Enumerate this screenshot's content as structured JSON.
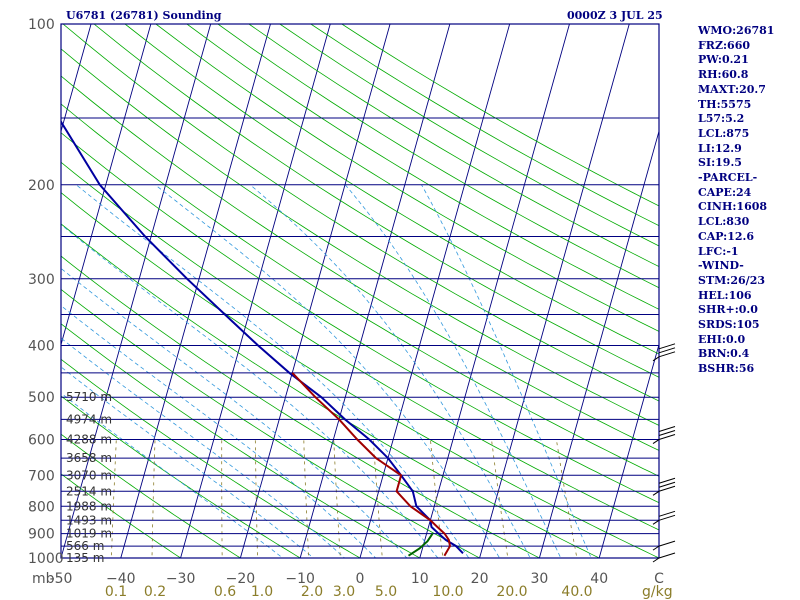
{
  "header": {
    "station": "U6781 (26781) Sounding",
    "time": "0000Z  3 JUL 25"
  },
  "indices": [
    "WMO:26781",
    "FRZ:660",
    "PW:0.21",
    "RH:60.8",
    "MAXT:20.7",
    "TH:5575",
    "L57:5.2",
    "LCL:875",
    "LI:12.9",
    "SI:19.5",
    "-PARCEL-",
    "CAPE:24",
    "CINH:1608",
    "LCL:830",
    "CAP:12.6",
    "LFC:-1",
    "-WIND-",
    "STM:26/23",
    "HEL:106",
    "SHR+:0.0",
    "SRDS:105",
    "EHI:0.0",
    "BRN:0.4",
    "BSHR:56"
  ],
  "colors": {
    "frame": "#000080",
    "isobar": "#000080",
    "isotherm": "#000080",
    "dry_adiabat": "#00aa00",
    "moist_adiabat": "#3399dd",
    "mixing_ratio": "#8b7d2a",
    "temperature": "#0000a0",
    "dewpoint": "#a00000",
    "parcel": "#006600"
  },
  "chart_data": {
    "type": "line",
    "title": "U6781 (26781) Sounding",
    "skew_t": true,
    "p_range": [
      1000,
      100
    ],
    "t_range_at_bottom": [
      -50,
      50
    ],
    "pressure_ticks": [
      100,
      200,
      300,
      400,
      500,
      600,
      700,
      800,
      900,
      1000
    ],
    "temperature_ticks": [
      "-50",
      "−40",
      "−30",
      "−20",
      "−10",
      "0",
      "10",
      "20",
      "30",
      "40",
      "C"
    ],
    "p_unit": "mb",
    "mixing_ratio_ticks": [
      "0.1",
      "0.2",
      "0.6",
      "1.0",
      "2.0",
      "3.0",
      "5.0",
      "10.0",
      "20.0",
      "40.0"
    ],
    "mixing_ratio_unit": "g/kg",
    "height_labels": [
      {
        "p": 500,
        "label": "5710 m"
      },
      {
        "p": 550,
        "label": "4974 m"
      },
      {
        "p": 600,
        "label": "4288 m"
      },
      {
        "p": 650,
        "label": "3658 m"
      },
      {
        "p": 700,
        "label": "3070 m"
      },
      {
        "p": 750,
        "label": "2514 m"
      },
      {
        "p": 800,
        "label": "1988 m"
      },
      {
        "p": 850,
        "label": "1493 m"
      },
      {
        "p": 900,
        "label": "1019 m"
      },
      {
        "p": 950,
        "label": "566 m"
      },
      {
        "p": 1000,
        "label": "135 m"
      }
    ],
    "series": [
      {
        "key": "temperature",
        "p": [
          980,
          950,
          925,
          900,
          875,
          850,
          800,
          750,
          700,
          650,
          600,
          550,
          500,
          450,
          400,
          350,
          300,
          250,
          200,
          150,
          115
        ],
        "t": [
          17,
          15.5,
          13.5,
          12,
          10.5,
          10,
          7,
          5.7,
          3,
          0,
          -4,
          -9,
          -14,
          -20.5,
          -27,
          -34,
          -42,
          -51,
          -61,
          -71,
          -78
        ]
      },
      {
        "key": "dewpoint",
        "p": [
          990,
          950,
          925,
          900,
          875,
          850,
          800,
          750,
          700,
          650,
          600,
          550,
          500,
          450
        ],
        "t": [
          14,
          14.5,
          14,
          13,
          11.5,
          10,
          6,
          3,
          3,
          -2,
          -6,
          -10,
          -15,
          -20
        ]
      },
      {
        "key": "parcel",
        "p": [
          990,
          960,
          930,
          900
        ],
        "t": [
          8,
          9.5,
          10.5,
          11
        ]
      }
    ],
    "winds": [
      {
        "p": 1000,
        "barbs": 1
      },
      {
        "p": 950,
        "barbs": 1
      },
      {
        "p": 850,
        "barbs": 2
      },
      {
        "p": 750,
        "barbs": 3
      },
      {
        "p": 600,
        "barbs": 3
      },
      {
        "p": 420,
        "barbs": 3
      }
    ]
  }
}
